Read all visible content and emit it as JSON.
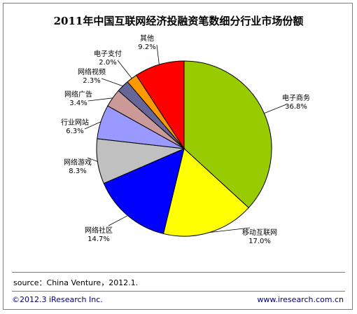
{
  "chart_data": {
    "type": "pie",
    "title": "2011年中国互联网经济投融资笔数细分行业市场份额",
    "slices": [
      {
        "label": "电子商务",
        "value": 36.8,
        "display": "36.8%",
        "color": "#99cc00"
      },
      {
        "label": "移动互联网",
        "value": 17.0,
        "display": "17.0%",
        "color": "#ffff00"
      },
      {
        "label": "网络社区",
        "value": 14.7,
        "display": "14.7%",
        "color": "#0000ff"
      },
      {
        "label": "网络游戏",
        "value": 8.3,
        "display": "8.3%",
        "color": "#c0c0c0"
      },
      {
        "label": "行业网站",
        "value": 6.3,
        "display": "6.3%",
        "color": "#9999ff"
      },
      {
        "label": "网络广告",
        "value": 3.4,
        "display": "3.4%",
        "color": "#cc9999"
      },
      {
        "label": "网络视频",
        "value": 2.3,
        "display": "2.3%",
        "color": "#666699"
      },
      {
        "label": "电子支付",
        "value": 2.0,
        "display": "2.0%",
        "color": "#ff9900"
      },
      {
        "label": "其他",
        "value": 9.2,
        "display": "9.2%",
        "color": "#ff0000"
      }
    ]
  },
  "footer": {
    "source": "source：China Venture，2012.1.",
    "copyright": "©2012.3 iResearch Inc.",
    "website": "www.iresearch.com.cn"
  }
}
